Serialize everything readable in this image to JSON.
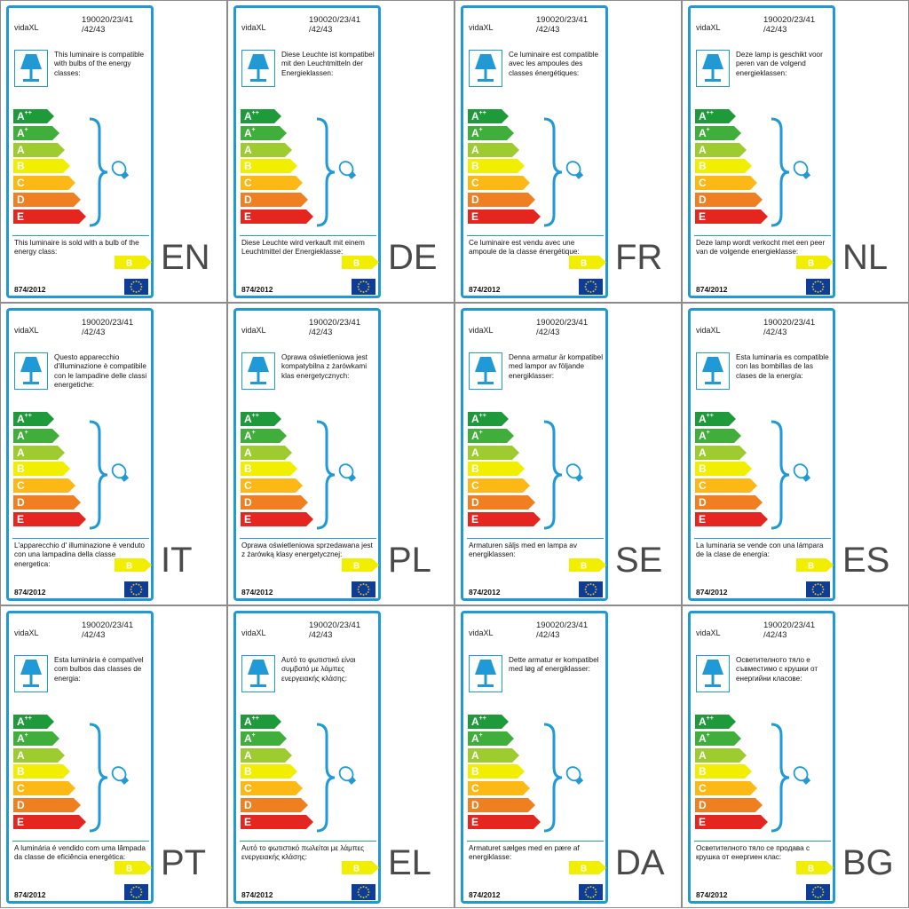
{
  "brand": "vidaXL",
  "product_code": "190020/23/41\n/42/43",
  "regulation": "874/2012",
  "classes": [
    "A++",
    "A+",
    "A",
    "B",
    "C",
    "D",
    "E"
  ],
  "sold_class": "B",
  "colors": {
    "border": "#1f9ad6",
    "A++": "#1f9a3a",
    "A+": "#3fae3a",
    "A": "#9ecb30",
    "B": "#f2ee00",
    "C": "#fcb814",
    "D": "#f07f22",
    "E": "#e3261f"
  },
  "icons": [
    "lamp-icon",
    "bracket-icon",
    "bulb-icon",
    "eu-flag-icon"
  ],
  "labels": [
    {
      "lang": "EN",
      "compat": "This luminaire is compatible with bulbs of the energy classes:",
      "sold": "This luminaire is sold with a bulb of the energy class:"
    },
    {
      "lang": "DE",
      "compat": "Diese Leuchte ist kompatibel mit den Leuchtmitteln der Energieklassen:",
      "sold": "Diese Leuchte wird verkauft mit einem Leuchtmittel der Energieklasse:"
    },
    {
      "lang": "FR",
      "compat": "Ce luminaire est compatible avec les ampoules des classes énergétiques:",
      "sold": "Ce luminaire est vendu avec une ampoule de la classe énergétique:"
    },
    {
      "lang": "NL",
      "compat": "Deze lamp is geschikt voor peren van de volgend energieklassen:",
      "sold": "Deze lamp wordt verkocht met een peer van de volgende energieklasse:"
    },
    {
      "lang": "IT",
      "compat": "Questo apparecchio d'illuminazione è compatibile con le lampadine delle classi energetiche:",
      "sold": "L'apparecchio d' illuminazione è venduto con una lampadina della classe energetica:"
    },
    {
      "lang": "PL",
      "compat": "Oprawa oświetleniowa jest kompatybilna z żarówkami klas energetycznych:",
      "sold": "Oprawa oświetleniowa sprzedawana jest z żarówką klasy energetycznej:"
    },
    {
      "lang": "SE",
      "compat": "Denna armatur är kompatibel med lampor av följande energiklasser:",
      "sold": "Armaturen säljs med en lampa av energiklassen:"
    },
    {
      "lang": "ES",
      "compat": "Esta luminaria es compatible con las bombillas de las clases de la energía:",
      "sold": "La luminaria se vende con una lámpara de la clase de energía:"
    },
    {
      "lang": "PT",
      "compat": "Esta luminária é compatível com bulbos das classes de energia:",
      "sold": "A luminária é vendido com uma lâmpada da classe de eficiência energética:"
    },
    {
      "lang": "EL",
      "compat": "Αυτό το φωτιστικό είναι συμβατό με λάμπες ενεργειακής κλάσης:",
      "sold": "Αυτό το φωτιστικό πωλείται με λάμπες ενεργειακής κλάσης:"
    },
    {
      "lang": "DA",
      "compat": "Dette armatur er kompatibel med løg af energiklasser:",
      "sold": "Armaturet sælges med en pære af energiklasse:"
    },
    {
      "lang": "BG",
      "compat": "Осветителното тяло е съвместимо с крушки от енергийни класове:",
      "sold": "Осветителното тяло се продава с крушка от енергиен клас:"
    }
  ]
}
